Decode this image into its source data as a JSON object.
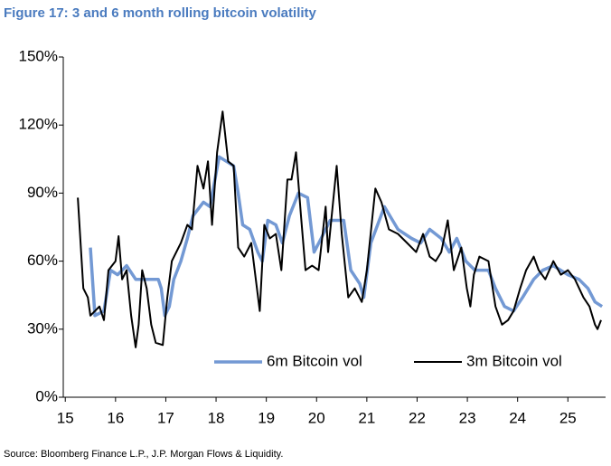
{
  "chart_data": {
    "type": "line",
    "title": "Figure 17: 3 and 6 month rolling bitcoin volatility",
    "source": "Source: Bloomberg Finance L.P., J.P. Morgan Flows & Liquidity.",
    "xlim": [
      14.96,
      25.75
    ],
    "xticks": [
      15,
      16,
      17,
      18,
      19,
      20,
      21,
      22,
      23,
      24,
      25
    ],
    "ylim": [
      0,
      150
    ],
    "yticks": [
      {
        "value": 0,
        "label": "0%"
      },
      {
        "value": 30,
        "label": "30%"
      },
      {
        "value": 60,
        "label": "60%"
      },
      {
        "value": 90,
        "label": "90%"
      },
      {
        "value": 120,
        "label": "120%"
      },
      {
        "value": 150,
        "label": "150%"
      }
    ],
    "grid": false,
    "legend": "lower right",
    "series": [
      {
        "name": "6m Bitcoin vol",
        "color": "#7399d4",
        "width": 3.5,
        "x": [
          15.5,
          15.59,
          15.77,
          15.9,
          16.04,
          16.22,
          16.4,
          16.85,
          16.91,
          16.98,
          17.07,
          17.16,
          17.3,
          17.43,
          17.54,
          17.75,
          17.88,
          18.06,
          18.35,
          18.44,
          18.53,
          18.67,
          18.83,
          18.92,
          19.03,
          19.19,
          19.32,
          19.46,
          19.64,
          19.82,
          19.95,
          20.09,
          20.27,
          20.54,
          20.68,
          20.86,
          20.94,
          21.08,
          21.35,
          21.62,
          21.89,
          22.07,
          22.25,
          22.48,
          22.64,
          22.79,
          22.97,
          23.15,
          23.42,
          23.56,
          23.74,
          23.92,
          24.1,
          24.32,
          24.5,
          24.71,
          25.0,
          25.22,
          25.4,
          25.54,
          25.68
        ],
        "values": [
          66,
          36,
          38,
          56,
          54,
          58,
          52,
          52,
          48,
          36,
          40,
          52,
          60,
          70,
          80,
          86,
          84,
          106,
          102,
          90,
          76,
          74,
          64,
          60,
          78,
          76,
          68,
          80,
          90,
          88,
          64,
          70,
          78,
          78,
          56,
          50,
          44,
          68,
          84,
          74,
          70,
          68,
          74,
          70,
          64,
          70,
          60,
          56,
          56,
          48,
          40,
          38,
          44,
          52,
          56,
          58,
          54,
          52,
          48,
          42,
          40
        ]
      },
      {
        "name": "3m Bitcoin vol",
        "color": "#000000",
        "width": 2,
        "x": [
          15.25,
          15.36,
          15.45,
          15.5,
          15.68,
          15.77,
          15.86,
          16.0,
          16.06,
          16.13,
          16.22,
          16.31,
          16.4,
          16.46,
          16.53,
          16.62,
          16.71,
          16.8,
          16.94,
          17.03,
          17.12,
          17.3,
          17.43,
          17.52,
          17.63,
          17.75,
          17.84,
          17.92,
          18.02,
          18.13,
          18.24,
          18.35,
          18.44,
          18.56,
          18.7,
          18.87,
          18.96,
          19.07,
          19.19,
          19.3,
          19.42,
          19.5,
          19.59,
          19.69,
          19.78,
          19.91,
          20.04,
          20.18,
          20.23,
          20.4,
          20.5,
          20.63,
          20.76,
          20.9,
          21.0,
          21.17,
          21.29,
          21.44,
          21.62,
          21.8,
          21.98,
          22.12,
          22.25,
          22.37,
          22.48,
          22.61,
          22.73,
          22.88,
          22.99,
          23.06,
          23.13,
          23.24,
          23.42,
          23.56,
          23.69,
          23.81,
          23.92,
          24.05,
          24.17,
          24.32,
          24.42,
          24.55,
          24.71,
          24.86,
          25.0,
          25.14,
          25.31,
          25.43,
          25.54,
          25.59,
          25.66
        ],
        "values": [
          88,
          48,
          44,
          36,
          40,
          34,
          56,
          60,
          71,
          52,
          56,
          36,
          22,
          32,
          56,
          48,
          32,
          24,
          23,
          44,
          60,
          68,
          76,
          74,
          102,
          92,
          104,
          76,
          108,
          126,
          104,
          102,
          66,
          62,
          68,
          38,
          76,
          70,
          72,
          56,
          96,
          96,
          108,
          80,
          56,
          58,
          56,
          84,
          64,
          102,
          72,
          44,
          48,
          42,
          56,
          92,
          86,
          74,
          72,
          68,
          64,
          72,
          62,
          60,
          64,
          78,
          56,
          66,
          48,
          40,
          54,
          62,
          60,
          40,
          32,
          34,
          38,
          48,
          56,
          62,
          56,
          52,
          60,
          54,
          56,
          52,
          44,
          40,
          32,
          30,
          34
        ]
      }
    ]
  }
}
